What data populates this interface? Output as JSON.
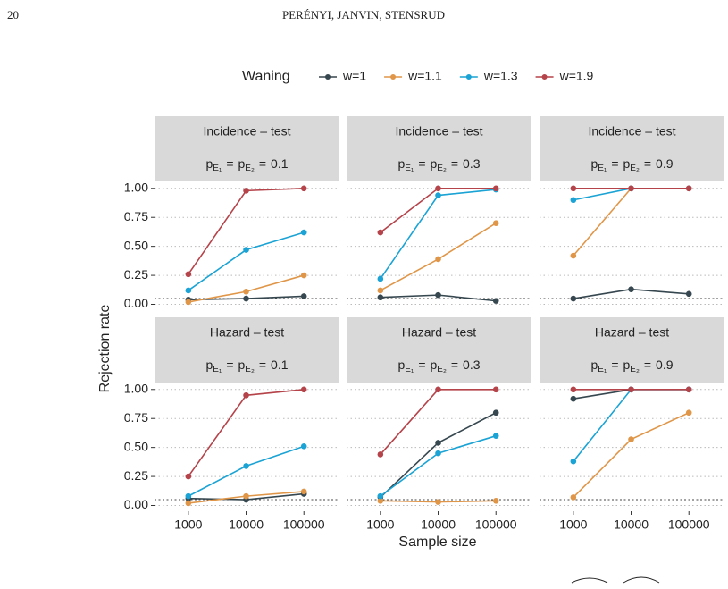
{
  "page_number": "20",
  "running_head": "PERÉNYI, JANVIN, STENSRUD",
  "legend_title": "Waning",
  "ylabel": "Rejection rate",
  "xlabel": "Sample size",
  "chart_data": [
    {
      "type": "line",
      "title": "Incidence – test",
      "condition": [
        "p",
        "E₁",
        "=",
        "p",
        "E₂",
        "=",
        "0.1"
      ],
      "x": [
        1000,
        10000,
        100000
      ],
      "xlim": [
        260,
        412000
      ],
      "log_x": true,
      "ylim": [
        -0.05,
        1.06
      ],
      "yticks": [
        {
          "value": 0,
          "label": "0.00"
        },
        {
          "value": 0.25,
          "label": "0.25"
        },
        {
          "value": 0.5,
          "label": "0.50"
        },
        {
          "value": 0.75,
          "label": "0.75"
        },
        {
          "value": 1,
          "label": "1.00"
        }
      ],
      "grid": true,
      "hline": 0.05,
      "series": [
        {
          "name": "w=1",
          "color": "#36474f",
          "values": [
            0.04,
            0.05,
            0.07
          ]
        },
        {
          "name": "w=1.1",
          "color": "#e09648",
          "values": [
            0.02,
            0.11,
            0.25
          ]
        },
        {
          "name": "w=1.3",
          "color": "#1aa3d4",
          "values": [
            0.12,
            0.47,
            0.62
          ]
        },
        {
          "name": "w=1.9",
          "color": "#b5434a",
          "values": [
            0.26,
            0.98,
            1.0
          ]
        }
      ]
    },
    {
      "type": "line",
      "title": "Incidence – test",
      "condition": [
        "p",
        "E₁",
        "=",
        "p",
        "E₂",
        "=",
        "0.3"
      ],
      "x": [
        1000,
        10000,
        100000
      ],
      "xlim": [
        260,
        412000
      ],
      "log_x": true,
      "ylim": [
        -0.05,
        1.06
      ],
      "yticks": [
        0,
        0.25,
        0.5,
        0.75,
        1
      ],
      "grid": true,
      "hline": 0.05,
      "series": [
        {
          "name": "w=1",
          "color": "#36474f",
          "values": [
            0.06,
            0.08,
            0.03
          ]
        },
        {
          "name": "w=1.1",
          "color": "#e09648",
          "values": [
            0.12,
            0.39,
            0.7
          ]
        },
        {
          "name": "w=1.3",
          "color": "#1aa3d4",
          "values": [
            0.22,
            0.94,
            0.99
          ]
        },
        {
          "name": "w=1.9",
          "color": "#b5434a",
          "values": [
            0.62,
            1.0,
            1.0
          ]
        }
      ]
    },
    {
      "type": "line",
      "title": "Incidence – test",
      "condition": [
        "p",
        "E₁",
        "=",
        "p",
        "E₂",
        "=",
        "0.9"
      ],
      "x": [
        1000,
        10000,
        100000
      ],
      "xlim": [
        260,
        412000
      ],
      "log_x": true,
      "ylim": [
        -0.05,
        1.06
      ],
      "yticks": [
        0,
        0.25,
        0.5,
        0.75,
        1
      ],
      "grid": true,
      "hline": 0.05,
      "series": [
        {
          "name": "w=1",
          "color": "#36474f",
          "values": [
            0.05,
            0.13,
            0.09
          ]
        },
        {
          "name": "w=1.1",
          "color": "#e09648",
          "values": [
            0.42,
            1.0,
            1.0
          ]
        },
        {
          "name": "w=1.3",
          "color": "#1aa3d4",
          "values": [
            0.9,
            1.0,
            1.0
          ]
        },
        {
          "name": "w=1.9",
          "color": "#b5434a",
          "values": [
            1.0,
            1.0,
            1.0
          ]
        }
      ]
    },
    {
      "type": "line",
      "title": "Hazard – test",
      "condition": [
        "p",
        "E₁",
        "=",
        "p",
        "E₂",
        "=",
        "0.1"
      ],
      "x": [
        1000,
        10000,
        100000
      ],
      "xlim": [
        260,
        412000
      ],
      "log_x": true,
      "ylim": [
        -0.05,
        1.06
      ],
      "xticks": [
        1000,
        10000,
        100000
      ],
      "yticks": [
        {
          "value": 0,
          "label": "0.00"
        },
        {
          "value": 0.25,
          "label": "0.25"
        },
        {
          "value": 0.5,
          "label": "0.50"
        },
        {
          "value": 0.75,
          "label": "0.75"
        },
        {
          "value": 1,
          "label": "1.00"
        }
      ],
      "grid": true,
      "hline": 0.05,
      "series": [
        {
          "name": "w=1",
          "color": "#36474f",
          "values": [
            0.06,
            0.05,
            0.1
          ]
        },
        {
          "name": "w=1.1",
          "color": "#e09648",
          "values": [
            0.02,
            0.08,
            0.12
          ]
        },
        {
          "name": "w=1.3",
          "color": "#1aa3d4",
          "values": [
            0.08,
            0.34,
            0.51
          ]
        },
        {
          "name": "w=1.9",
          "color": "#b5434a",
          "values": [
            0.25,
            0.95,
            1.0
          ]
        }
      ]
    },
    {
      "type": "line",
      "title": "Hazard – test",
      "condition": [
        "p",
        "E₁",
        "=",
        "p",
        "E₂",
        "=",
        "0.3"
      ],
      "x": [
        1000,
        10000,
        100000
      ],
      "xlim": [
        260,
        412000
      ],
      "log_x": true,
      "ylim": [
        -0.05,
        1.06
      ],
      "xticks": [
        1000,
        10000,
        100000
      ],
      "yticks": [
        0,
        0.25,
        0.5,
        0.75,
        1
      ],
      "grid": true,
      "hline": 0.05,
      "series": [
        {
          "name": "w=1",
          "color": "#36474f",
          "values": [
            0.07,
            0.54,
            0.8
          ]
        },
        {
          "name": "w=1.1",
          "color": "#e09648",
          "values": [
            0.04,
            0.03,
            0.04
          ]
        },
        {
          "name": "w=1.3",
          "color": "#1aa3d4",
          "values": [
            0.08,
            0.45,
            0.6
          ]
        },
        {
          "name": "w=1.9",
          "color": "#b5434a",
          "values": [
            0.44,
            1.0,
            1.0
          ]
        }
      ]
    },
    {
      "type": "line",
      "title": "Hazard – test",
      "condition": [
        "p",
        "E₁",
        "=",
        "p",
        "E₂",
        "=",
        "0.9"
      ],
      "x": [
        1000,
        10000,
        100000
      ],
      "xlim": [
        260,
        412000
      ],
      "log_x": true,
      "ylim": [
        -0.05,
        1.06
      ],
      "xticks": [
        1000,
        10000,
        100000
      ],
      "yticks": [
        0,
        0.25,
        0.5,
        0.75,
        1
      ],
      "grid": true,
      "hline": 0.05,
      "series": [
        {
          "name": "w=1",
          "color": "#36474f",
          "values": [
            0.92,
            1.0,
            1.0
          ]
        },
        {
          "name": "w=1.1",
          "color": "#e09648",
          "values": [
            0.07,
            0.57,
            0.8
          ]
        },
        {
          "name": "w=1.3",
          "color": "#1aa3d4",
          "values": [
            0.38,
            1.0,
            1.0
          ]
        },
        {
          "name": "w=1.9",
          "color": "#b5434a",
          "values": [
            1.0,
            1.0,
            1.0
          ]
        }
      ]
    }
  ]
}
